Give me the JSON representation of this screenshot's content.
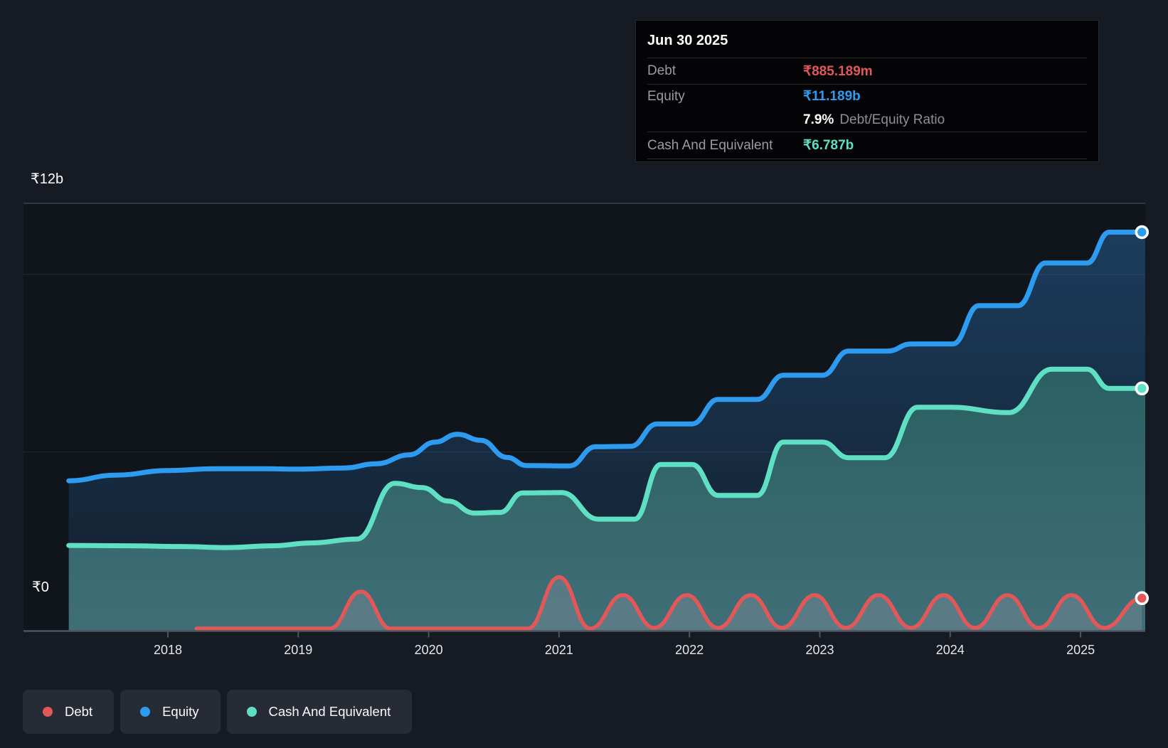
{
  "colors": {
    "background": "#151a23",
    "plot_shade": "rgba(0,0,0,0.22)",
    "debt": "#e25757",
    "equity": "#2d9cf0",
    "cash": "#5fe0c4",
    "axis_line": "#4d545f",
    "gridline_major": "#3c414b",
    "gridline_minor": "rgba(255,255,255,0.07)",
    "tooltip_bg": "#040406",
    "debt_fill": "rgba(150,152,168,0.32)"
  },
  "tooltip": {
    "title": "Jun 30 2025",
    "debt_label": "Debt",
    "debt_value": "₹885.189m",
    "equity_label": "Equity",
    "equity_value": "₹11.189b",
    "ratio_value": "7.9%",
    "ratio_label": "Debt/Equity Ratio",
    "cash_label": "Cash And Equivalent",
    "cash_value": "₹6.787b"
  },
  "legend": {
    "items": [
      {
        "label": "Debt",
        "color": "#e25757"
      },
      {
        "label": "Equity",
        "color": "#2d9cf0"
      },
      {
        "label": "Cash And Equivalent",
        "color": "#5fe0c4"
      }
    ]
  },
  "chart_data": {
    "type": "area",
    "unit": "INR billions",
    "x_axis": {
      "range": [
        2017.24,
        2025.47
      ],
      "tick_years": [
        2018,
        2019,
        2020,
        2021,
        2022,
        2023,
        2024,
        2025
      ],
      "tick_labels": [
        "2018",
        "2019",
        "2020",
        "2021",
        "2022",
        "2023",
        "2024",
        "2025"
      ]
    },
    "y_axis": {
      "range": [
        0,
        12
      ],
      "top_label": "₹12b",
      "zero_label": "₹0",
      "gridline_values_b": [
        12,
        10,
        5
      ],
      "major_gridline_b": 12
    },
    "legend_position": "bottom-left",
    "series": [
      {
        "name": "Equity",
        "color": "#2d9cf0",
        "end_value_b": 11.189,
        "points": [
          [
            2017.24,
            4.19
          ],
          [
            2017.6,
            4.35
          ],
          [
            2018.0,
            4.48
          ],
          [
            2018.35,
            4.53
          ],
          [
            2018.7,
            4.53
          ],
          [
            2019.0,
            4.52
          ],
          [
            2019.35,
            4.55
          ],
          [
            2019.6,
            4.67
          ],
          [
            2019.85,
            4.92
          ],
          [
            2020.05,
            5.28
          ],
          [
            2020.22,
            5.5
          ],
          [
            2020.4,
            5.33
          ],
          [
            2020.6,
            4.85
          ],
          [
            2020.75,
            4.62
          ],
          [
            2021.08,
            4.61
          ],
          [
            2021.28,
            5.15
          ],
          [
            2021.55,
            5.16
          ],
          [
            2021.75,
            5.79
          ],
          [
            2022.02,
            5.79
          ],
          [
            2022.22,
            6.48
          ],
          [
            2022.52,
            6.48
          ],
          [
            2022.72,
            7.16
          ],
          [
            2023.02,
            7.16
          ],
          [
            2023.22,
            7.84
          ],
          [
            2023.52,
            7.84
          ],
          [
            2023.7,
            8.04
          ],
          [
            2024.02,
            8.04
          ],
          [
            2024.22,
            9.12
          ],
          [
            2024.52,
            9.12
          ],
          [
            2024.73,
            10.32
          ],
          [
            2025.05,
            10.32
          ],
          [
            2025.22,
            11.19
          ],
          [
            2025.47,
            11.19
          ]
        ]
      },
      {
        "name": "Cash And Equivalent",
        "color": "#5fe0c4",
        "end_value_b": 6.787,
        "points": [
          [
            2017.24,
            2.37
          ],
          [
            2017.7,
            2.36
          ],
          [
            2018.1,
            2.34
          ],
          [
            2018.45,
            2.31
          ],
          [
            2018.8,
            2.36
          ],
          [
            2019.1,
            2.44
          ],
          [
            2019.45,
            2.55
          ],
          [
            2019.74,
            4.12
          ],
          [
            2019.95,
            4.0
          ],
          [
            2020.15,
            3.62
          ],
          [
            2020.35,
            3.28
          ],
          [
            2020.55,
            3.3
          ],
          [
            2020.72,
            3.85
          ],
          [
            2021.02,
            3.86
          ],
          [
            2021.3,
            3.11
          ],
          [
            2021.58,
            3.11
          ],
          [
            2021.78,
            4.65
          ],
          [
            2022.02,
            4.65
          ],
          [
            2022.22,
            3.78
          ],
          [
            2022.52,
            3.78
          ],
          [
            2022.72,
            5.28
          ],
          [
            2023.02,
            5.28
          ],
          [
            2023.22,
            4.84
          ],
          [
            2023.5,
            4.84
          ],
          [
            2023.75,
            6.26
          ],
          [
            2024.0,
            6.26
          ],
          [
            2024.45,
            6.11
          ],
          [
            2024.78,
            7.33
          ],
          [
            2025.05,
            7.33
          ],
          [
            2025.22,
            6.79
          ],
          [
            2025.47,
            6.79
          ]
        ]
      },
      {
        "name": "Debt",
        "color": "#e25757",
        "end_value_b": 0.885,
        "points": [
          [
            2018.22,
            0.03
          ],
          [
            2018.7,
            0.03
          ],
          [
            2019.24,
            0.03
          ],
          [
            2019.48,
            1.07
          ],
          [
            2019.71,
            0.03
          ],
          [
            2020.2,
            0.03
          ],
          [
            2020.76,
            0.03
          ],
          [
            2021.0,
            1.48
          ],
          [
            2021.24,
            0.03
          ],
          [
            2021.49,
            0.97
          ],
          [
            2021.73,
            0.05
          ],
          [
            2021.98,
            0.97
          ],
          [
            2022.22,
            0.05
          ],
          [
            2022.47,
            0.97
          ],
          [
            2022.71,
            0.05
          ],
          [
            2022.96,
            0.97
          ],
          [
            2023.2,
            0.05
          ],
          [
            2023.45,
            0.97
          ],
          [
            2023.7,
            0.05
          ],
          [
            2023.95,
            0.97
          ],
          [
            2024.19,
            0.05
          ],
          [
            2024.44,
            0.97
          ],
          [
            2024.68,
            0.05
          ],
          [
            2024.93,
            0.97
          ],
          [
            2025.18,
            0.05
          ],
          [
            2025.47,
            0.885
          ]
        ]
      }
    ]
  }
}
